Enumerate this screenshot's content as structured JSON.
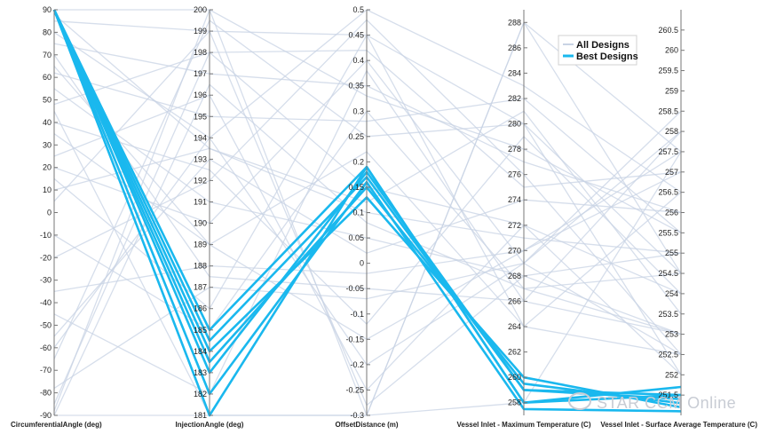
{
  "chart_data": {
    "type": "parallel-coordinates",
    "legend": {
      "placement": "top-right",
      "entries": [
        {
          "label": "All Designs",
          "color": "#c8d3e4"
        },
        {
          "label": "Best Designs",
          "color": "#1ab8ee"
        }
      ]
    },
    "axes": [
      {
        "label": "CircumferentialAngle (deg)",
        "range": [
          -90,
          90
        ],
        "ticks": [
          "-90",
          "-80",
          "-70",
          "-60",
          "-50",
          "-40",
          "-30",
          "-20",
          "-10",
          "0",
          "10",
          "20",
          "30",
          "40",
          "50",
          "60",
          "70",
          "80",
          "90"
        ]
      },
      {
        "label": "InjectionAngle (deg)",
        "range": [
          181,
          200
        ],
        "ticks": [
          "181",
          "182",
          "183",
          "184",
          "185",
          "186",
          "187",
          "188",
          "189",
          "190",
          "191",
          "192",
          "193",
          "194",
          "195",
          "196",
          "197",
          "198",
          "199",
          "200"
        ]
      },
      {
        "label": "OffsetDistance (m)",
        "range": [
          -0.3,
          0.5
        ],
        "ticks": [
          "-0.3",
          "-0.25",
          "-0.2",
          "-0.15",
          "-0.1",
          "-0.05",
          "0",
          "0.05",
          "0.1",
          "0.15",
          "0.2",
          "0.25",
          "0.3",
          "0.35",
          "0.4",
          "0.45",
          "0.5"
        ]
      },
      {
        "label": "Vessel Inlet - Maximum Temperature (C)",
        "range": [
          257,
          289
        ],
        "ticks": [
          "258",
          "260",
          "262",
          "264",
          "266",
          "268",
          "270",
          "272",
          "274",
          "276",
          "278",
          "280",
          "282",
          "284",
          "286",
          "288"
        ]
      },
      {
        "label": "Vessel Inlet - Surface Average Temperature (C)",
        "range": [
          251,
          261
        ],
        "ticks": [
          "251.5",
          "252",
          "252.5",
          "253",
          "253.5",
          "254",
          "254.5",
          "255",
          "255.5",
          "256",
          "256.5",
          "257",
          "257.5",
          "258",
          "258.5",
          "259",
          "259.5",
          "260",
          "260.5"
        ]
      }
    ],
    "all_designs": [
      [
        90,
        200,
        -0.3,
        288,
        257.5
      ],
      [
        88,
        193.5,
        0.1,
        271,
        255
      ],
      [
        85,
        199,
        0.45,
        280,
        254.5
      ],
      [
        80,
        194,
        -0.2,
        269,
        252.5
      ],
      [
        75,
        197,
        0.35,
        277,
        256
      ],
      [
        70,
        187.5,
        -0.05,
        266,
        258
      ],
      [
        62,
        195,
        0.28,
        282,
        255.5
      ],
      [
        55,
        191,
        0.05,
        268,
        253
      ],
      [
        48,
        198,
        0.42,
        275,
        257
      ],
      [
        40,
        192.5,
        -0.12,
        279,
        254
      ],
      [
        35,
        189,
        0.22,
        264,
        256.5
      ],
      [
        25,
        196,
        -0.25,
        272,
        252
      ],
      [
        20,
        190,
        0.4,
        269,
        258.5
      ],
      [
        10,
        193.5,
        0.12,
        281,
        253.5
      ],
      [
        5,
        199,
        -0.28,
        268,
        255
      ],
      [
        -10,
        185,
        0.3,
        267,
        254.5
      ],
      [
        -20,
        192,
        0.48,
        276,
        252.5
      ],
      [
        -35,
        188,
        -0.02,
        270,
        257
      ],
      [
        -45,
        182,
        0.38,
        266,
        253
      ],
      [
        -55,
        193,
        0.02,
        274,
        256
      ],
      [
        -65,
        199.5,
        0.25,
        280,
        252
      ],
      [
        -78,
        187,
        -0.07,
        269,
        258
      ],
      [
        -85,
        198,
        0.15,
        272,
        254
      ],
      [
        -88,
        200,
        0.33,
        278,
        255.5
      ],
      [
        -90,
        196.5,
        0.08,
        267,
        253
      ],
      [
        -90,
        181,
        -0.3,
        258,
        257.5
      ],
      [
        -60,
        194,
        0.5,
        283,
        256.5
      ],
      [
        15,
        186,
        0.45,
        264,
        252.5
      ],
      [
        45,
        181,
        -0.3,
        288,
        254.5
      ],
      [
        65,
        189,
        -0.15,
        270,
        257.5
      ]
    ],
    "best_designs": [
      [
        90,
        184,
        0.13,
        260,
        251.2
      ],
      [
        90,
        183.5,
        0.15,
        259.5,
        251.3
      ],
      [
        90,
        184.5,
        0.17,
        259,
        251.5
      ],
      [
        90,
        185,
        0.19,
        258,
        251.7
      ],
      [
        90,
        181,
        0.19,
        258,
        251.5
      ],
      [
        90,
        182,
        0.16,
        257.5,
        251.1
      ],
      [
        90,
        183,
        0.18,
        259,
        251.4
      ]
    ]
  }
}
